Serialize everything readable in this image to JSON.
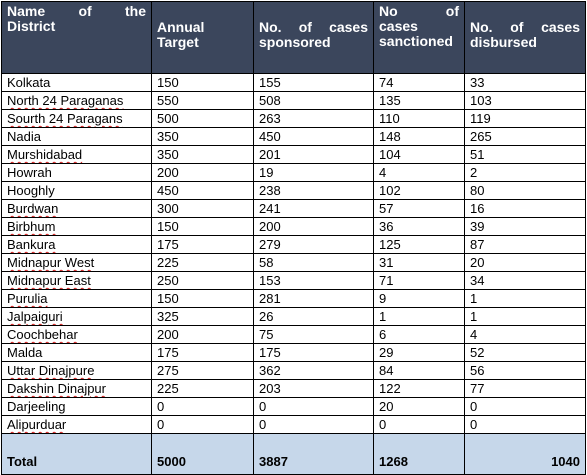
{
  "headers": {
    "district_l1_a": "Name",
    "district_l1_b": "of",
    "district_l1_c": "the",
    "district_l2": "District",
    "target_l1": "Annual",
    "target_l2": "Target",
    "sponsored_l1_a": "No.",
    "sponsored_l1_b": "of",
    "sponsored_l1_c": "cases",
    "sponsored_l2": "sponsored",
    "sanctioned_l1_a": "No",
    "sanctioned_l1_b": "of",
    "sanctioned_l2": "cases",
    "sanctioned_l3": "sanctioned",
    "disbursed_l1_a": "No.",
    "disbursed_l1_b": "of",
    "disbursed_l1_c": "cases",
    "disbursed_l2": "disbursed"
  },
  "rows": [
    {
      "district": "Kolkata",
      "target": "150",
      "sponsored": "155",
      "sanctioned": "74",
      "disbursed": "33"
    },
    {
      "district": "North 24 Paraganas",
      "target": "550",
      "sponsored": "508",
      "sanctioned": "135",
      "disbursed": "103"
    },
    {
      "district": "Sourth 24 Paragans",
      "target": "500",
      "sponsored": "263",
      "sanctioned": "110",
      "disbursed": "119"
    },
    {
      "district": "Nadia",
      "target": "350",
      "sponsored": "450",
      "sanctioned": "148",
      "disbursed": "265"
    },
    {
      "district": "Murshidabad",
      "target": "350",
      "sponsored": "201",
      "sanctioned": "104",
      "disbursed": "51"
    },
    {
      "district": "Howrah",
      "target": "200",
      "sponsored": "19",
      "sanctioned": "4",
      "disbursed": "2"
    },
    {
      "district": "Hooghly",
      "target": "450",
      "sponsored": "238",
      "sanctioned": "102",
      "disbursed": "80"
    },
    {
      "district": "Burdwan",
      "target": "300",
      "sponsored": "241",
      "sanctioned": "57",
      "disbursed": "16"
    },
    {
      "district": "Birbhum",
      "target": "150",
      "sponsored": "200",
      "sanctioned": "36",
      "disbursed": "39"
    },
    {
      "district": "Bankura",
      "target": "175",
      "sponsored": "279",
      "sanctioned": "125",
      "disbursed": "87"
    },
    {
      "district": "Midnapur West",
      "target": "225",
      "sponsored": "58",
      "sanctioned": "31",
      "disbursed": "20"
    },
    {
      "district": "Midnapur East",
      "target": "250",
      "sponsored": "153",
      "sanctioned": "71",
      "disbursed": "34"
    },
    {
      "district": "Purulia",
      "target": "150",
      "sponsored": "281",
      "sanctioned": "9",
      "disbursed": "1"
    },
    {
      "district": "Jalpaiguri",
      "target": "325",
      "sponsored": "26",
      "sanctioned": "1",
      "disbursed": "1"
    },
    {
      "district": "Coochbehar",
      "target": "200",
      "sponsored": "75",
      "sanctioned": "6",
      "disbursed": "4"
    },
    {
      "district": "Malda",
      "target": "175",
      "sponsored": "175",
      "sanctioned": "29",
      "disbursed": "52"
    },
    {
      "district": "Uttar Dinajpure",
      "target": "275",
      "sponsored": "362",
      "sanctioned": "84",
      "disbursed": "56"
    },
    {
      "district": "Dakshin Dinajpur",
      "target": "225",
      "sponsored": "203",
      "sanctioned": "122",
      "disbursed": "77"
    },
    {
      "district": "Darjeeling",
      "target": "0",
      "sponsored": "0",
      "sanctioned": "20",
      "disbursed": "0"
    },
    {
      "district": "Alipurduar",
      "target": "0",
      "sponsored": "0",
      "sanctioned": "0",
      "disbursed": "0"
    }
  ],
  "total": {
    "label": "Total",
    "target": "5000",
    "sponsored": "3887",
    "sanctioned": "1268",
    "disbursed": "1040"
  },
  "colors": {
    "header_bg": "#3b465c",
    "header_text": "#ffffff",
    "total_bg": "#c6d7ea",
    "spell_underline": "#d11b1b"
  }
}
